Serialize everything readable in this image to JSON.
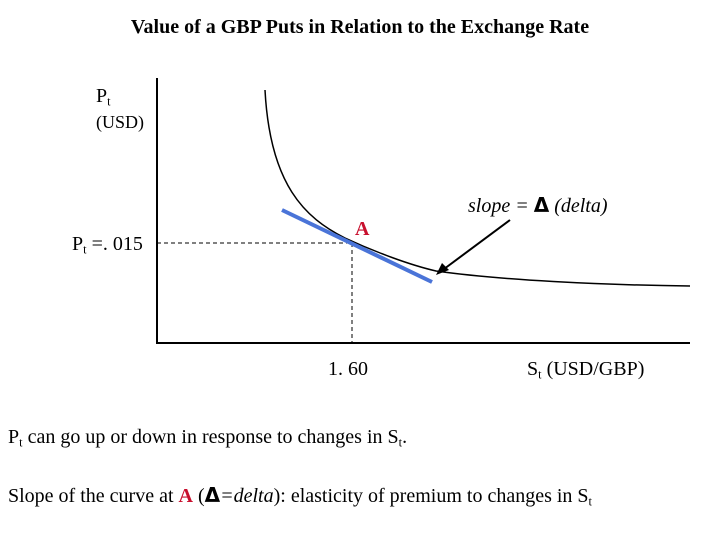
{
  "title": "Value of a GBP Puts in Relation to the Exchange Rate",
  "y_axis": {
    "label_main": "P",
    "label_sub": "t",
    "unit": "(USD)"
  },
  "x_axis": {
    "label_main": "S",
    "label_sub": "t",
    "unit": "(USD/GBP)"
  },
  "marker_value_y": {
    "main": "P",
    "sub": "t",
    "rest": " =. 015"
  },
  "marker_value_x": "1. 60",
  "point_label": "A",
  "slope_annotation": {
    "prefix": "slope = ",
    "symbol": "Δ",
    "suffix": " (delta)"
  },
  "line1": {
    "P": "P",
    "t": "t",
    "text": " can go up or down in response to changes in S",
    "t2": "t",
    "end": "."
  },
  "line2": {
    "prefix": "Slope of the curve at ",
    "A": "A",
    "open": " (",
    "delta": "Δ",
    "eq": "=delta",
    "rest": "): elasticity of premium to changes in S",
    "t": "t"
  },
  "colors": {
    "tangent": "#4a74d8",
    "point_label": "#c8102e",
    "axes": "#000000"
  }
}
